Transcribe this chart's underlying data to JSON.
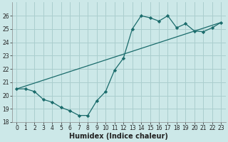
{
  "line1_x": [
    0,
    1,
    2,
    3,
    4,
    5,
    6,
    7,
    8,
    9,
    10,
    11,
    12,
    13,
    14,
    15,
    16,
    17,
    18,
    19,
    20,
    21,
    22,
    23
  ],
  "line1_y": [
    20.5,
    20.5,
    20.3,
    19.7,
    19.5,
    19.1,
    18.85,
    18.5,
    18.5,
    19.6,
    20.3,
    21.9,
    22.8,
    25.0,
    26.0,
    25.85,
    25.6,
    26.0,
    25.1,
    25.4,
    24.85,
    24.8,
    25.1,
    25.5
  ],
  "line2_x": [
    0,
    23
  ],
  "line2_y": [
    20.5,
    25.5
  ],
  "bg_color": "#cce8e8",
  "grid_color": "#aacece",
  "line_color": "#1a6b6b",
  "xlabel": "Humidex (Indice chaleur)",
  "ylim": [
    18,
    27
  ],
  "xlim": [
    -0.5,
    23.5
  ],
  "yticks": [
    18,
    19,
    20,
    21,
    22,
    23,
    24,
    25,
    26
  ],
  "xticks": [
    0,
    1,
    2,
    3,
    4,
    5,
    6,
    7,
    8,
    9,
    10,
    11,
    12,
    13,
    14,
    15,
    16,
    17,
    18,
    19,
    20,
    21,
    22,
    23
  ],
  "tick_fontsize": 5.5,
  "xlabel_fontsize": 7,
  "marker": "D",
  "markersize": 2.2,
  "linewidth": 0.9
}
